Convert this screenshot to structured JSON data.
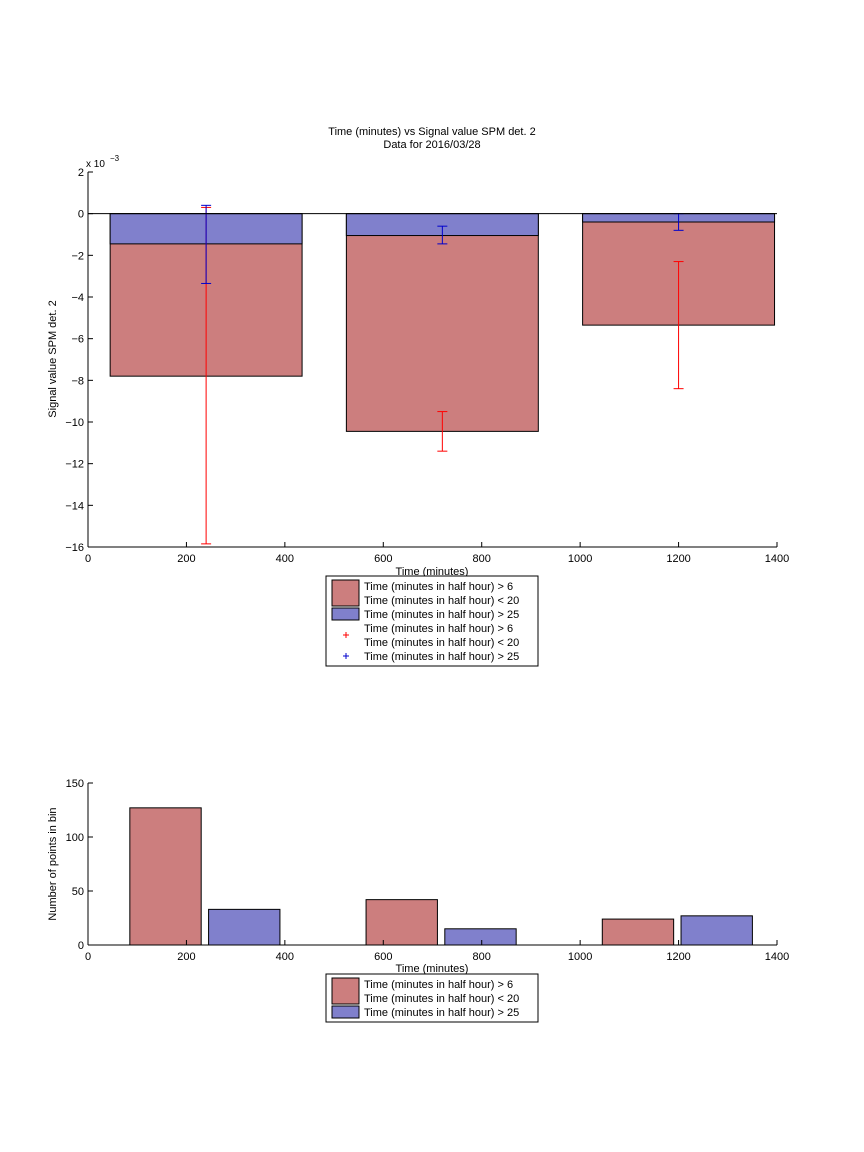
{
  "chart_data": [
    {
      "type": "bar",
      "title": "Time (minutes) vs Signal value SPM det. 2",
      "subtitle": "Data for 2016/03/28",
      "xlabel": "Time (minutes)",
      "ylabel": "Signal value SPM det. 2",
      "exponent_label": "x 10",
      "exponent_power": "−3",
      "xlim": [
        0,
        1400
      ],
      "ylim": [
        -16,
        2
      ],
      "xticks": [
        "0",
        "200",
        "400",
        "600",
        "800",
        "1000",
        "1200",
        "1400"
      ],
      "yticks": [
        "2",
        "0",
        "−2",
        "−4",
        "−6",
        "−8",
        "−10",
        "−12",
        "−14",
        "−16"
      ],
      "grid": false,
      "legend_position": "bottom-center",
      "colors": {
        "red": "#cc7e7e",
        "blue": "#8080cc",
        "red_err": "#ff0000",
        "blue_err": "#0000cc"
      },
      "bars": [
        {
          "x": 240,
          "bin_start": 45,
          "bin_end": 435,
          "red": -7.8,
          "blue": -1.45
        },
        {
          "x": 720,
          "bin_start": 525,
          "bin_end": 915,
          "red": -10.45,
          "blue": -1.05
        },
        {
          "x": 1200,
          "bin_start": 1005,
          "bin_end": 1395,
          "red": -5.35,
          "blue": -0.4
        }
      ],
      "errorbars": [
        {
          "series": "red",
          "x": 240,
          "low": -15.85,
          "high": 0.3
        },
        {
          "series": "red",
          "x": 720,
          "low": -11.4,
          "high": -9.5
        },
        {
          "series": "red",
          "x": 1200,
          "low": -8.4,
          "high": -2.3
        },
        {
          "series": "blue",
          "x": 240,
          "low": -3.35,
          "high": 0.4
        },
        {
          "series": "blue",
          "x": 720,
          "low": -1.45,
          "high": -0.6
        },
        {
          "series": "blue",
          "x": 1200,
          "low": -0.8,
          "high": 0.0
        }
      ],
      "legend": [
        {
          "kind": "patch",
          "color": "red",
          "lines": [
            "Time (minutes in half hour) > 6",
            "Time (minutes in half hour) < 20"
          ]
        },
        {
          "kind": "patch",
          "color": "blue",
          "lines": [
            "Time (minutes in half hour) > 25"
          ]
        },
        {
          "kind": "marker",
          "color": "red_err",
          "lines": [
            "Time (minutes in half hour) > 6",
            "Time (minutes in half hour) < 20"
          ]
        },
        {
          "kind": "marker",
          "color": "blue_err",
          "lines": [
            "Time (minutes in half hour) > 25"
          ]
        }
      ]
    },
    {
      "type": "bar",
      "xlabel": "Time (minutes)",
      "ylabel": "Number of points in bin",
      "xlim": [
        0,
        1400
      ],
      "ylim": [
        0,
        150
      ],
      "xticks": [
        "0",
        "200",
        "400",
        "600",
        "800",
        "1000",
        "1200",
        "1400"
      ],
      "yticks": [
        "0",
        "50",
        "100",
        "150"
      ],
      "grid": false,
      "legend_position": "bottom-center",
      "bars": [
        {
          "series": "red",
          "x0": 85,
          "x1": 230,
          "value": 127
        },
        {
          "series": "blue",
          "x0": 245,
          "x1": 390,
          "value": 33
        },
        {
          "series": "red",
          "x0": 565,
          "x1": 710,
          "value": 42
        },
        {
          "series": "blue",
          "x0": 725,
          "x1": 870,
          "value": 15
        },
        {
          "series": "red",
          "x0": 1045,
          "x1": 1190,
          "value": 24
        },
        {
          "series": "blue",
          "x0": 1205,
          "x1": 1350,
          "value": 27
        }
      ],
      "legend": [
        {
          "kind": "patch",
          "color": "red",
          "lines": [
            "Time (minutes in half hour) > 6",
            "Time (minutes in half hour) < 20"
          ]
        },
        {
          "kind": "patch",
          "color": "blue",
          "lines": [
            "Time (minutes in half hour) > 25"
          ]
        }
      ]
    }
  ]
}
